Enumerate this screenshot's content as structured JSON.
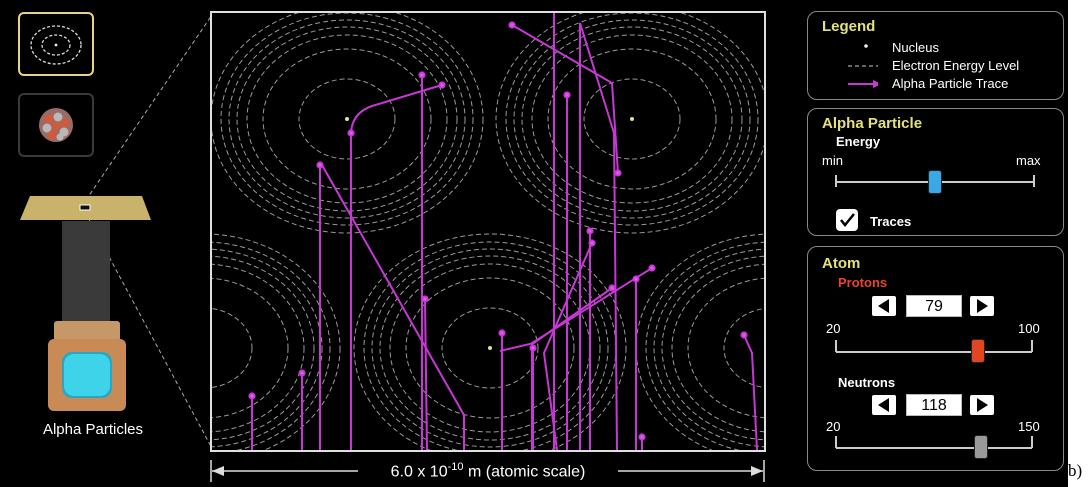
{
  "gun": {
    "label": "Alpha Particles"
  },
  "view_buttons": [
    {
      "name": "atom-view-icon",
      "selected": true
    },
    {
      "name": "nucleus-view-icon",
      "selected": false
    }
  ],
  "sim": {
    "scale_value": "6.0 x 10",
    "scale_exponent": "-10",
    "scale_unit": " m (atomic scale)"
  },
  "legend": {
    "title": "Legend",
    "items": [
      "Nucleus",
      "Electron Energy Level",
      "Alpha Particle Trace"
    ]
  },
  "alpha_particle": {
    "title": "Alpha Particle",
    "energy_label": "Energy",
    "min_label": "min",
    "max_label": "max",
    "energy_level": 0.5,
    "traces_label": "Traces",
    "traces_checked": true
  },
  "atom": {
    "title": "Atom",
    "protons_label": "Protons",
    "protons_value": "79",
    "protons_min": "20",
    "protons_max": "100",
    "neutrons_label": "Neutrons",
    "neutrons_value": "118",
    "neutrons_min": "20",
    "neutrons_max": "150"
  },
  "colors": {
    "accent_title": "#e3e17c",
    "protons_label": "#e8452a",
    "trace": "#c837d6",
    "energy_thumb": "#3aa7e6",
    "protons_thumb": "#e0461f",
    "neutrons_thumb": "#9a9a9a",
    "nucleus": "#e4e28a"
  },
  "trailing_text": "b)"
}
